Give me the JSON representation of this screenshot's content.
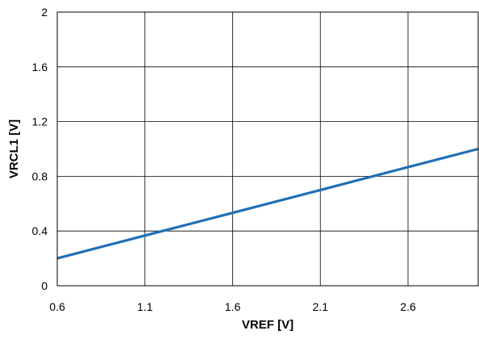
{
  "chart_data": {
    "type": "line",
    "title": "",
    "xlabel": "VREF [V]",
    "ylabel": "VRCL1 [V]",
    "xlim": [
      0.6,
      3.0
    ],
    "ylim": [
      0,
      2
    ],
    "x_ticks": [
      0.6,
      1.1,
      1.6,
      2.1,
      2.6
    ],
    "x_tick_labels": [
      "0.6",
      "1.1",
      "1.6",
      "2.1",
      "2.6"
    ],
    "y_ticks": [
      0,
      0.4,
      0.8,
      1.2,
      1.6,
      2
    ],
    "y_tick_labels": [
      "0",
      "0.4",
      "0.8",
      "1.2",
      "1.6",
      "2"
    ],
    "grid": true,
    "series": [
      {
        "color": "#1f6fb5",
        "x": [
          0.6,
          1.1,
          1.6,
          2.1,
          2.6,
          3.0
        ],
        "y": [
          0.2,
          0.367,
          0.533,
          0.7,
          0.867,
          1.0
        ]
      }
    ]
  }
}
